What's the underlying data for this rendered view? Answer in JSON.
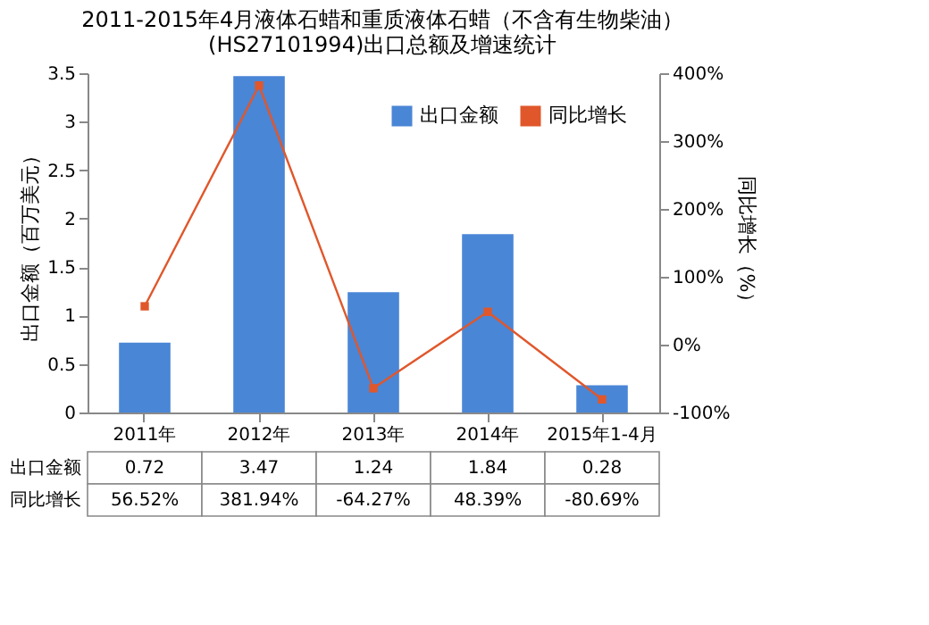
{
  "chart_data": {
    "type": "bar",
    "title": "2011-2015年4月液体石蜡和重质液体石蜡（不含有生物柴油）\n(HS27101994)出口总额及增速统计",
    "categories": [
      "2011年",
      "2012年",
      "2013年",
      "2014年",
      "2015年1-4月"
    ],
    "ylabel": "出口金额（百万美元）",
    "y2label": "同比增长（%）",
    "ylim": [
      0,
      3.5
    ],
    "yticks": [
      0,
      0.5,
      1.0,
      1.5,
      2.0,
      2.5,
      3.0,
      3.5
    ],
    "y2lim": [
      -100,
      400
    ],
    "y2ticks": [
      {
        "value": -100,
        "label": "-100%"
      },
      {
        "value": 0,
        "label": "0%"
      },
      {
        "value": 100,
        "label": "100%"
      },
      {
        "value": 200,
        "label": "200%"
      },
      {
        "value": 300,
        "label": "300%"
      },
      {
        "value": 400,
        "label": "400%"
      }
    ],
    "legend": "top right",
    "marker": "square",
    "line_style": "solid",
    "series": [
      {
        "name": "出口金额",
        "color": "#4a86d6",
        "values": [
          0.72,
          3.47,
          1.24,
          1.84,
          0.28
        ],
        "value_labels": [
          "0.72",
          "3.47",
          "1.24",
          "1.84",
          "0.28"
        ]
      },
      {
        "name": "同比增长",
        "type": "line",
        "axis": "y2",
        "color": "#e0572b",
        "values": [
          56.52,
          381.94,
          -64.27,
          48.39,
          -80.69
        ],
        "value_labels": [
          "56.52%",
          "381.94%",
          "-64.27%",
          "48.39%",
          "-80.69%"
        ]
      }
    ]
  }
}
